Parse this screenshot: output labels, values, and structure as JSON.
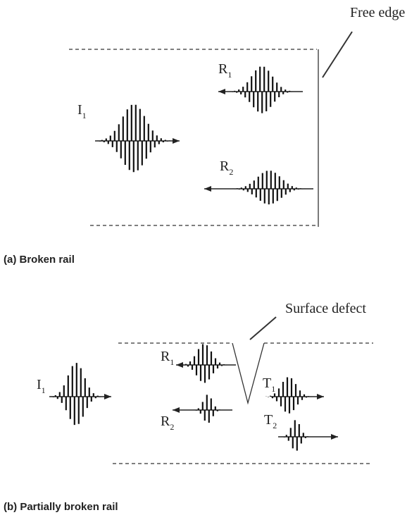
{
  "panel_a": {
    "annotation": "Free edge",
    "waves": [
      {
        "letter": "I",
        "sub": "1"
      },
      {
        "letter": "R",
        "sub": "1"
      },
      {
        "letter": "R",
        "sub": "2"
      }
    ],
    "caption": "(a) Broken rail"
  },
  "panel_b": {
    "annotation": "Surface defect",
    "waves": [
      {
        "letter": "I",
        "sub": "1"
      },
      {
        "letter": "R",
        "sub": "1"
      },
      {
        "letter": "R",
        "sub": "2"
      },
      {
        "letter": "T",
        "sub": "1"
      },
      {
        "letter": "T",
        "sub": "2"
      }
    ],
    "caption": "(b) Partially broken rail"
  }
}
